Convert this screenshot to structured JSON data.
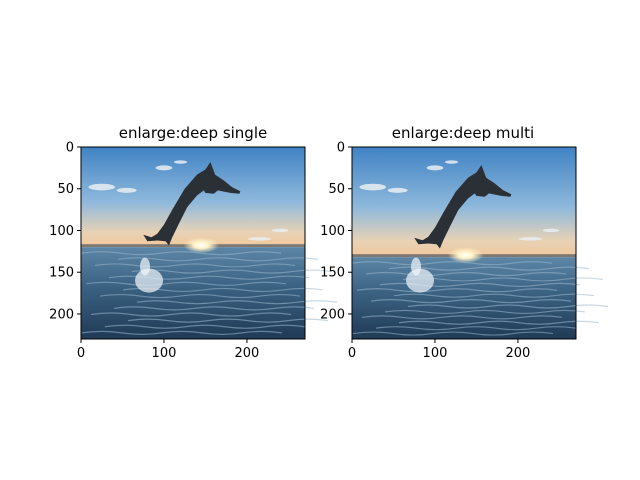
{
  "chart_data": [
    {
      "type": "image",
      "title": "enlarge:deep single",
      "xlabel": "",
      "ylabel": "",
      "xlim": [
        0,
        270
      ],
      "ylim": [
        230,
        0
      ],
      "x_ticks": [
        0,
        100,
        200
      ],
      "y_ticks": [
        0,
        50,
        100,
        150,
        200
      ],
      "image_content": "dolphin-jumping-at-sunset",
      "horizon_y": 120,
      "sun_x": 145
    },
    {
      "type": "image",
      "title": "enlarge:deep multi",
      "xlabel": "",
      "ylabel": "",
      "xlim": [
        0,
        270
      ],
      "ylim": [
        230,
        0
      ],
      "x_ticks": [
        0,
        100,
        200
      ],
      "y_ticks": [
        0,
        50,
        100,
        150,
        200
      ],
      "image_content": "dolphin-jumping-at-sunset",
      "horizon_y": 132,
      "sun_x": 137
    }
  ],
  "colors": {
    "sky_top": "#3f82c4",
    "sky_mid": "#8fb9dc",
    "sky_horizon": "#f3c89a",
    "sun": "#fff6d8",
    "sea_near": "#27435e",
    "sea_far": "#4f7795",
    "dolphin": "#2b2f36",
    "axis": "#000000"
  }
}
